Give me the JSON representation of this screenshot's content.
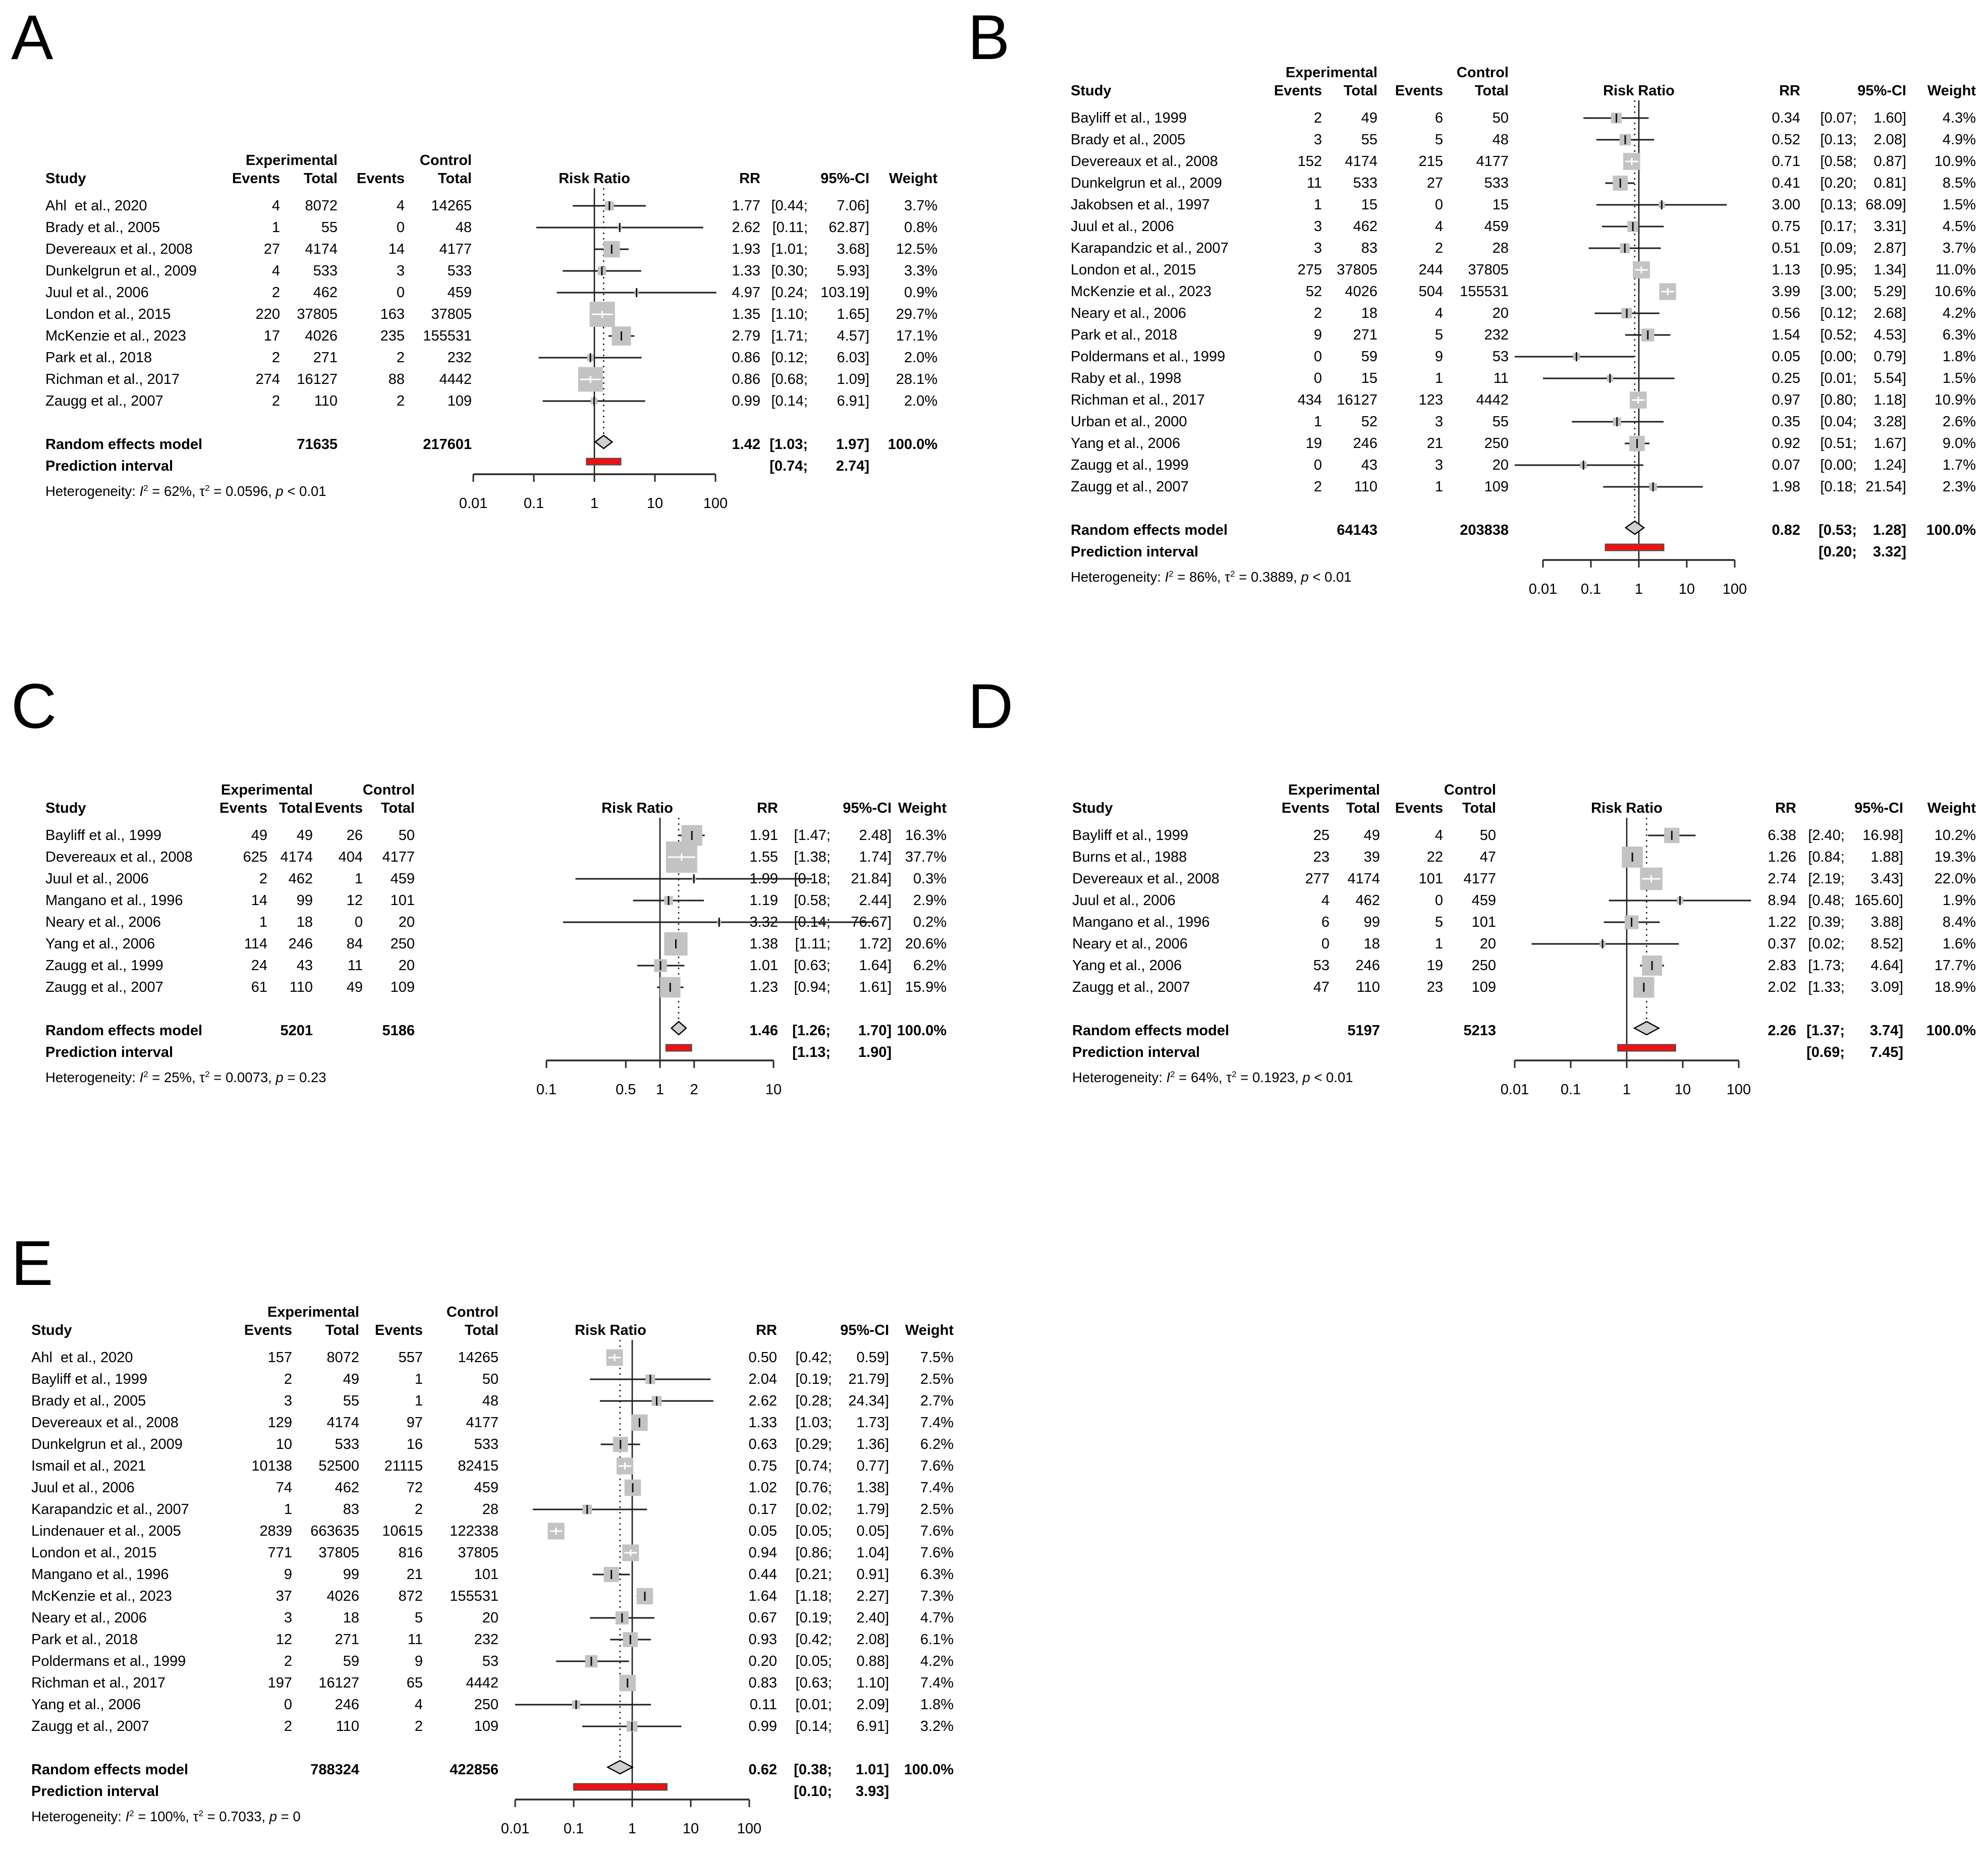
{
  "figure": {
    "labels": {
      "study": "Study",
      "experimental": "Experimental",
      "control": "Control",
      "events": "Events",
      "total": "Total",
      "risk_ratio": "Risk Ratio",
      "rr": "RR",
      "ci": "95%-CI",
      "weight": "Weight",
      "random": "Random effects model",
      "prediction": "Prediction interval",
      "heterogeneity": "Heterogeneity: ",
      "i_sym": "I",
      "tau_sym": "τ",
      "sup2": "2",
      "eq": " = ",
      "sep": ", ",
      "p_sym": "p"
    },
    "colors": {
      "square": "#c3c3c3",
      "diamond": "#cfcfcf",
      "prediction_bar": "#ee1111",
      "line": "#1c1c1c"
    }
  },
  "chart_data": [
    {
      "type": "scatter",
      "variant": "forest-plot",
      "panel": "A",
      "effect_measure": "Risk Ratio",
      "x_scale": "log",
      "x_ticks": [
        "0.01",
        "0.1",
        "1",
        "10",
        "100"
      ],
      "legend_position": "none",
      "studies": [
        {
          "study": "Ahl  et al., 2020",
          "e1": "4",
          "n1": "8072",
          "e2": "4",
          "n2": "14265",
          "rr": 1.77,
          "lo": 0.44,
          "hi": 7.06,
          "w": "3.7%"
        },
        {
          "study": "Brady et al., 2005",
          "e1": "1",
          "n1": "55",
          "e2": "0",
          "n2": "48",
          "rr": 2.62,
          "lo": 0.11,
          "hi": 62.87,
          "w": "0.8%"
        },
        {
          "study": "Devereaux et al., 2008",
          "e1": "27",
          "n1": "4174",
          "e2": "14",
          "n2": "4177",
          "rr": 1.93,
          "lo": 1.01,
          "hi": 3.68,
          "w": "12.5%"
        },
        {
          "study": "Dunkelgrun et al., 2009",
          "e1": "4",
          "n1": "533",
          "e2": "3",
          "n2": "533",
          "rr": 1.33,
          "lo": 0.3,
          "hi": 5.93,
          "w": "3.3%"
        },
        {
          "study": "Juul et al., 2006",
          "e1": "2",
          "n1": "462",
          "e2": "0",
          "n2": "459",
          "rr": 4.97,
          "lo": 0.24,
          "hi": 103.19,
          "w": "0.9%"
        },
        {
          "study": "London et al., 2015",
          "e1": "220",
          "n1": "37805",
          "e2": "163",
          "n2": "37805",
          "rr": 1.35,
          "lo": 1.1,
          "hi": 1.65,
          "w": "29.7%"
        },
        {
          "study": "McKenzie et al., 2023",
          "e1": "17",
          "n1": "4026",
          "e2": "235",
          "n2": "155531",
          "rr": 2.79,
          "lo": 1.71,
          "hi": 4.57,
          "w": "17.1%"
        },
        {
          "study": "Park et al., 2018",
          "e1": "2",
          "n1": "271",
          "e2": "2",
          "n2": "232",
          "rr": 0.86,
          "lo": 0.12,
          "hi": 6.03,
          "w": "2.0%"
        },
        {
          "study": "Richman et al., 2017",
          "e1": "274",
          "n1": "16127",
          "e2": "88",
          "n2": "4442",
          "rr": 0.86,
          "lo": 0.68,
          "hi": 1.09,
          "w": "28.1%"
        },
        {
          "study": "Zaugg et al., 2007",
          "e1": "2",
          "n1": "110",
          "e2": "2",
          "n2": "109",
          "rr": 0.99,
          "lo": 0.14,
          "hi": 6.91,
          "w": "2.0%"
        }
      ],
      "random": {
        "n1": "71635",
        "n2": "217601",
        "rr": 1.42,
        "lo": 1.03,
        "hi": 1.97,
        "w": "100.0%"
      },
      "prediction": {
        "lo": 0.74,
        "hi": 2.74
      },
      "heterogeneity": {
        "i2": "62%",
        "tau2": "0.0596",
        "p": " < 0.01"
      }
    },
    {
      "type": "scatter",
      "variant": "forest-plot",
      "panel": "B",
      "effect_measure": "Risk Ratio",
      "x_scale": "log",
      "x_ticks": [
        "0.01",
        "0.1",
        "1",
        "10",
        "100"
      ],
      "legend_position": "none",
      "studies": [
        {
          "study": "Bayliff et al., 1999",
          "e1": "2",
          "n1": "49",
          "e2": "6",
          "n2": "50",
          "rr": 0.34,
          "lo": 0.07,
          "hi": 1.6,
          "w": "4.3%"
        },
        {
          "study": "Brady et al., 2005",
          "e1": "3",
          "n1": "55",
          "e2": "5",
          "n2": "48",
          "rr": 0.52,
          "lo": 0.13,
          "hi": 2.08,
          "w": "4.9%"
        },
        {
          "study": "Devereaux et al., 2008",
          "e1": "152",
          "n1": "4174",
          "e2": "215",
          "n2": "4177",
          "rr": 0.71,
          "lo": 0.58,
          "hi": 0.87,
          "w": "10.9%"
        },
        {
          "study": "Dunkelgrun et al., 2009",
          "e1": "11",
          "n1": "533",
          "e2": "27",
          "n2": "533",
          "rr": 0.41,
          "lo": 0.2,
          "hi": 0.81,
          "w": "8.5%"
        },
        {
          "study": "Jakobsen et al., 1997",
          "e1": "1",
          "n1": "15",
          "e2": "0",
          "n2": "15",
          "rr": 3.0,
          "lo": 0.13,
          "hi": 68.09,
          "w": "1.5%"
        },
        {
          "study": "Juul et al., 2006",
          "e1": "3",
          "n1": "462",
          "e2": "4",
          "n2": "459",
          "rr": 0.75,
          "lo": 0.17,
          "hi": 3.31,
          "w": "4.5%"
        },
        {
          "study": "Karapandzic et al., 2007",
          "e1": "3",
          "n1": "83",
          "e2": "2",
          "n2": "28",
          "rr": 0.51,
          "lo": 0.09,
          "hi": 2.87,
          "w": "3.7%"
        },
        {
          "study": "London et al., 2015",
          "e1": "275",
          "n1": "37805",
          "e2": "244",
          "n2": "37805",
          "rr": 1.13,
          "lo": 0.95,
          "hi": 1.34,
          "w": "11.0%"
        },
        {
          "study": "McKenzie et al., 2023",
          "e1": "52",
          "n1": "4026",
          "e2": "504",
          "n2": "155531",
          "rr": 3.99,
          "lo": 3.0,
          "hi": 5.29,
          "w": "10.6%"
        },
        {
          "study": "Neary et al., 2006",
          "e1": "2",
          "n1": "18",
          "e2": "4",
          "n2": "20",
          "rr": 0.56,
          "lo": 0.12,
          "hi": 2.68,
          "w": "4.2%"
        },
        {
          "study": "Park et al., 2018",
          "e1": "9",
          "n1": "271",
          "e2": "5",
          "n2": "232",
          "rr": 1.54,
          "lo": 0.52,
          "hi": 4.53,
          "w": "6.3%"
        },
        {
          "study": "Poldermans et al., 1999",
          "e1": "0",
          "n1": "59",
          "e2": "9",
          "n2": "53",
          "rr": 0.05,
          "lo": 0.0,
          "hi": 0.79,
          "w": "1.8%"
        },
        {
          "study": "Raby et al., 1998",
          "e1": "0",
          "n1": "15",
          "e2": "1",
          "n2": "11",
          "rr": 0.25,
          "lo": 0.01,
          "hi": 5.54,
          "w": "1.5%"
        },
        {
          "study": "Richman et al., 2017",
          "e1": "434",
          "n1": "16127",
          "e2": "123",
          "n2": "4442",
          "rr": 0.97,
          "lo": 0.8,
          "hi": 1.18,
          "w": "10.9%"
        },
        {
          "study": "Urban et al., 2000",
          "e1": "1",
          "n1": "52",
          "e2": "3",
          "n2": "55",
          "rr": 0.35,
          "lo": 0.04,
          "hi": 3.28,
          "w": "2.6%"
        },
        {
          "study": "Yang et al., 2006",
          "e1": "19",
          "n1": "246",
          "e2": "21",
          "n2": "250",
          "rr": 0.92,
          "lo": 0.51,
          "hi": 1.67,
          "w": "9.0%"
        },
        {
          "study": "Zaugg et al., 1999",
          "e1": "0",
          "n1": "43",
          "e2": "3",
          "n2": "20",
          "rr": 0.07,
          "lo": 0.0,
          "hi": 1.24,
          "w": "1.7%"
        },
        {
          "study": "Zaugg et al., 2007",
          "e1": "2",
          "n1": "110",
          "e2": "1",
          "n2": "109",
          "rr": 1.98,
          "lo": 0.18,
          "hi": 21.54,
          "w": "2.3%"
        }
      ],
      "random": {
        "n1": "64143",
        "n2": "203838",
        "rr": 0.82,
        "lo": 0.53,
        "hi": 1.28,
        "w": "100.0%"
      },
      "prediction": {
        "lo": 0.2,
        "hi": 3.32
      },
      "heterogeneity": {
        "i2": "86%",
        "tau2": "0.3889",
        "p": " < 0.01"
      }
    },
    {
      "type": "scatter",
      "variant": "forest-plot",
      "panel": "C",
      "effect_measure": "Risk Ratio",
      "x_scale": "log",
      "x_ticks": [
        "0.1",
        "0.5",
        "1",
        "2",
        "10"
      ],
      "legend_position": "none",
      "studies": [
        {
          "study": "Bayliff et al., 1999",
          "e1": "49",
          "n1": "49",
          "e2": "26",
          "n2": "50",
          "rr": 1.91,
          "lo": 1.47,
          "hi": 2.48,
          "w": "16.3%"
        },
        {
          "study": "Devereaux et al., 2008",
          "e1": "625",
          "n1": "4174",
          "e2": "404",
          "n2": "4177",
          "rr": 1.55,
          "lo": 1.38,
          "hi": 1.74,
          "w": "37.7%"
        },
        {
          "study": "Juul et al., 2006",
          "e1": "2",
          "n1": "462",
          "e2": "1",
          "n2": "459",
          "rr": 1.99,
          "lo": 0.18,
          "hi": 21.84,
          "w": "0.3%"
        },
        {
          "study": "Mangano et al., 1996",
          "e1": "14",
          "n1": "99",
          "e2": "12",
          "n2": "101",
          "rr": 1.19,
          "lo": 0.58,
          "hi": 2.44,
          "w": "2.9%"
        },
        {
          "study": "Neary et al., 2006",
          "e1": "1",
          "n1": "18",
          "e2": "0",
          "n2": "20",
          "rr": 3.32,
          "lo": 0.14,
          "hi": 76.67,
          "w": "0.2%"
        },
        {
          "study": "Yang et al., 2006",
          "e1": "114",
          "n1": "246",
          "e2": "84",
          "n2": "250",
          "rr": 1.38,
          "lo": 1.11,
          "hi": 1.72,
          "w": "20.6%"
        },
        {
          "study": "Zaugg et al., 1999",
          "e1": "24",
          "n1": "43",
          "e2": "11",
          "n2": "20",
          "rr": 1.01,
          "lo": 0.63,
          "hi": 1.64,
          "w": "6.2%"
        },
        {
          "study": "Zaugg et al., 2007",
          "e1": "61",
          "n1": "110",
          "e2": "49",
          "n2": "109",
          "rr": 1.23,
          "lo": 0.94,
          "hi": 1.61,
          "w": "15.9%"
        }
      ],
      "random": {
        "n1": "5201",
        "n2": "5186",
        "rr": 1.46,
        "lo": 1.26,
        "hi": 1.7,
        "w": "100.0%"
      },
      "prediction": {
        "lo": 1.13,
        "hi": 1.9
      },
      "heterogeneity": {
        "i2": "25%",
        "tau2": "0.0073",
        "p": " = 0.23"
      }
    },
    {
      "type": "scatter",
      "variant": "forest-plot",
      "panel": "D",
      "effect_measure": "Risk Ratio",
      "x_scale": "log",
      "x_ticks": [
        "0.01",
        "0.1",
        "1",
        "10",
        "100"
      ],
      "legend_position": "none",
      "studies": [
        {
          "study": "Bayliff et al., 1999",
          "e1": "25",
          "n1": "49",
          "e2": "4",
          "n2": "50",
          "rr": 6.38,
          "lo": 2.4,
          "hi": 16.98,
          "w": "10.2%"
        },
        {
          "study": "Burns et al., 1988",
          "e1": "23",
          "n1": "39",
          "e2": "22",
          "n2": "47",
          "rr": 1.26,
          "lo": 0.84,
          "hi": 1.88,
          "w": "19.3%"
        },
        {
          "study": "Devereaux et al., 2008",
          "e1": "277",
          "n1": "4174",
          "e2": "101",
          "n2": "4177",
          "rr": 2.74,
          "lo": 2.19,
          "hi": 3.43,
          "w": "22.0%"
        },
        {
          "study": "Juul et al., 2006",
          "e1": "4",
          "n1": "462",
          "e2": "0",
          "n2": "459",
          "rr": 8.94,
          "lo": 0.48,
          "hi": 165.6,
          "w": "1.9%"
        },
        {
          "study": "Mangano et al., 1996",
          "e1": "6",
          "n1": "99",
          "e2": "5",
          "n2": "101",
          "rr": 1.22,
          "lo": 0.39,
          "hi": 3.88,
          "w": "8.4%"
        },
        {
          "study": "Neary et al., 2006",
          "e1": "0",
          "n1": "18",
          "e2": "1",
          "n2": "20",
          "rr": 0.37,
          "lo": 0.02,
          "hi": 8.52,
          "w": "1.6%"
        },
        {
          "study": "Yang et al., 2006",
          "e1": "53",
          "n1": "246",
          "e2": "19",
          "n2": "250",
          "rr": 2.83,
          "lo": 1.73,
          "hi": 4.64,
          "w": "17.7%"
        },
        {
          "study": "Zaugg et al., 2007",
          "e1": "47",
          "n1": "110",
          "e2": "23",
          "n2": "109",
          "rr": 2.02,
          "lo": 1.33,
          "hi": 3.09,
          "w": "18.9%"
        }
      ],
      "random": {
        "n1": "5197",
        "n2": "5213",
        "rr": 2.26,
        "lo": 1.37,
        "hi": 3.74,
        "w": "100.0%"
      },
      "prediction": {
        "lo": 0.69,
        "hi": 7.45
      },
      "heterogeneity": {
        "i2": "64%",
        "tau2": "0.1923",
        "p": " < 0.01"
      }
    },
    {
      "type": "scatter",
      "variant": "forest-plot",
      "panel": "E",
      "effect_measure": "Risk Ratio",
      "x_scale": "log",
      "x_ticks": [
        "0.01",
        "0.1",
        "1",
        "10",
        "100"
      ],
      "legend_position": "none",
      "studies": [
        {
          "study": "Ahl  et al., 2020",
          "e1": "157",
          "n1": "8072",
          "e2": "557",
          "n2": "14265",
          "rr": 0.5,
          "lo": 0.42,
          "hi": 0.59,
          "w": "7.5%"
        },
        {
          "study": "Bayliff et al., 1999",
          "e1": "2",
          "n1": "49",
          "e2": "1",
          "n2": "50",
          "rr": 2.04,
          "lo": 0.19,
          "hi": 21.79,
          "w": "2.5%"
        },
        {
          "study": "Brady et al., 2005",
          "e1": "3",
          "n1": "55",
          "e2": "1",
          "n2": "48",
          "rr": 2.62,
          "lo": 0.28,
          "hi": 24.34,
          "w": "2.7%"
        },
        {
          "study": "Devereaux et al., 2008",
          "e1": "129",
          "n1": "4174",
          "e2": "97",
          "n2": "4177",
          "rr": 1.33,
          "lo": 1.03,
          "hi": 1.73,
          "w": "7.4%"
        },
        {
          "study": "Dunkelgrun et al., 2009",
          "e1": "10",
          "n1": "533",
          "e2": "16",
          "n2": "533",
          "rr": 0.63,
          "lo": 0.29,
          "hi": 1.36,
          "w": "6.2%"
        },
        {
          "study": "Ismail et al., 2021",
          "e1": "10138",
          "n1": "52500",
          "e2": "21115",
          "n2": "82415",
          "rr": 0.75,
          "lo": 0.74,
          "hi": 0.77,
          "w": "7.6%"
        },
        {
          "study": "Juul et al., 2006",
          "e1": "74",
          "n1": "462",
          "e2": "72",
          "n2": "459",
          "rr": 1.02,
          "lo": 0.76,
          "hi": 1.38,
          "w": "7.4%"
        },
        {
          "study": "Karapandzic et al., 2007",
          "e1": "1",
          "n1": "83",
          "e2": "2",
          "n2": "28",
          "rr": 0.17,
          "lo": 0.02,
          "hi": 1.79,
          "w": "2.5%"
        },
        {
          "study": "Lindenauer et al., 2005",
          "e1": "2839",
          "n1": "663635",
          "e2": "10615",
          "n2": "122338",
          "rr": 0.05,
          "lo": 0.05,
          "hi": 0.05,
          "w": "7.6%"
        },
        {
          "study": "London et al., 2015",
          "e1": "771",
          "n1": "37805",
          "e2": "816",
          "n2": "37805",
          "rr": 0.94,
          "lo": 0.86,
          "hi": 1.04,
          "w": "7.6%"
        },
        {
          "study": "Mangano et al., 1996",
          "e1": "9",
          "n1": "99",
          "e2": "21",
          "n2": "101",
          "rr": 0.44,
          "lo": 0.21,
          "hi": 0.91,
          "w": "6.3%"
        },
        {
          "study": "McKenzie et al., 2023",
          "e1": "37",
          "n1": "4026",
          "e2": "872",
          "n2": "155531",
          "rr": 1.64,
          "lo": 1.18,
          "hi": 2.27,
          "w": "7.3%"
        },
        {
          "study": "Neary et al., 2006",
          "e1": "3",
          "n1": "18",
          "e2": "5",
          "n2": "20",
          "rr": 0.67,
          "lo": 0.19,
          "hi": 2.4,
          "w": "4.7%"
        },
        {
          "study": "Park et al., 2018",
          "e1": "12",
          "n1": "271",
          "e2": "11",
          "n2": "232",
          "rr": 0.93,
          "lo": 0.42,
          "hi": 2.08,
          "w": "6.1%"
        },
        {
          "study": "Poldermans et al., 1999",
          "e1": "2",
          "n1": "59",
          "e2": "9",
          "n2": "53",
          "rr": 0.2,
          "lo": 0.05,
          "hi": 0.88,
          "w": "4.2%"
        },
        {
          "study": "Richman et al., 2017",
          "e1": "197",
          "n1": "16127",
          "e2": "65",
          "n2": "4442",
          "rr": 0.83,
          "lo": 0.63,
          "hi": 1.1,
          "w": "7.4%"
        },
        {
          "study": "Yang et al., 2006",
          "e1": "0",
          "n1": "246",
          "e2": "4",
          "n2": "250",
          "rr": 0.11,
          "lo": 0.01,
          "hi": 2.09,
          "w": "1.8%"
        },
        {
          "study": "Zaugg et al., 2007",
          "e1": "2",
          "n1": "110",
          "e2": "2",
          "n2": "109",
          "rr": 0.99,
          "lo": 0.14,
          "hi": 6.91,
          "w": "3.2%"
        }
      ],
      "random": {
        "n1": "788324",
        "n2": "422856",
        "rr": 0.62,
        "lo": 0.38,
        "hi": 1.01,
        "w": "100.0%"
      },
      "prediction": {
        "lo": 0.1,
        "hi": 3.93
      },
      "heterogeneity": {
        "i2": "100%",
        "tau2": "0.7033",
        "p": " = 0"
      }
    }
  ]
}
